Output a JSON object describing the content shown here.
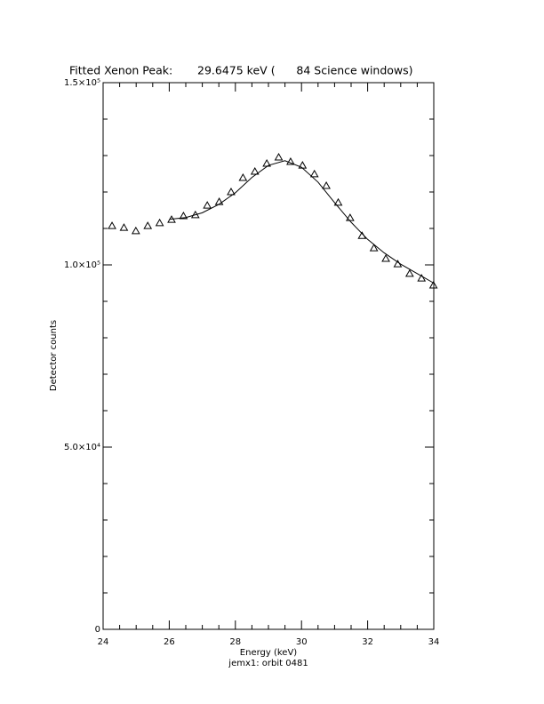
{
  "chart_data": {
    "type": "scatter",
    "title": "Fitted Xenon Peak:       29.6475 keV (      84 Science windows)",
    "x_label": "Energy (keV)",
    "subtitle": "jemx1: orbit 0481",
    "y_label": "Detector counts",
    "xlim": [
      24,
      34
    ],
    "ylim": [
      0,
      150000
    ],
    "xticks": [
      24,
      26,
      28,
      30,
      32,
      34
    ],
    "yticks": [
      0,
      {
        "value": 50000,
        "label": "5.0×10⁴"
      },
      {
        "value": 100000,
        "label": "1.0×10⁵"
      },
      {
        "value": 150000,
        "label": "1.5×10⁵"
      }
    ],
    "xminor": [
      24.5,
      25,
      25.5,
      26.5,
      27,
      27.5,
      28.5,
      29,
      29.5,
      30.5,
      31,
      31.5,
      32.5,
      33,
      33.5
    ],
    "yminor": [
      10000,
      20000,
      30000,
      40000,
      60000,
      70000,
      80000,
      90000,
      110000,
      120000,
      130000,
      140000
    ],
    "series": [
      {
        "color": "#000000",
        "marker": "triangle",
        "x": [
          24.27,
          24.63,
          24.99,
          25.35,
          25.71,
          26.07,
          26.43,
          26.79,
          27.15,
          27.51,
          27.87,
          28.23,
          28.59,
          28.95,
          29.31,
          29.67,
          30.03,
          30.39,
          30.75,
          31.11,
          31.47,
          31.83,
          32.19,
          32.55,
          32.91,
          33.27,
          33.63,
          33.99
        ],
        "values": [
          110700,
          110200,
          109300,
          110700,
          111500,
          112400,
          113400,
          113700,
          116300,
          117300,
          120000,
          123900,
          125600,
          127800,
          129500,
          128300,
          127300,
          124900,
          121700,
          117100,
          112900,
          108000,
          104600,
          101700,
          100200,
          97600,
          96300,
          94400
        ]
      },
      {
        "color": "#000000",
        "marker": "line",
        "x": [
          26,
          26.5,
          27,
          27.5,
          28,
          28.5,
          29,
          29.5,
          30,
          30.5,
          31,
          31.5,
          32,
          32.5,
          33,
          33.5,
          34
        ],
        "values": [
          112500,
          113000,
          114300,
          116600,
          119800,
          124000,
          127300,
          128600,
          126800,
          122700,
          117100,
          111700,
          107000,
          103300,
          100200,
          97600,
          95000
        ]
      }
    ]
  }
}
